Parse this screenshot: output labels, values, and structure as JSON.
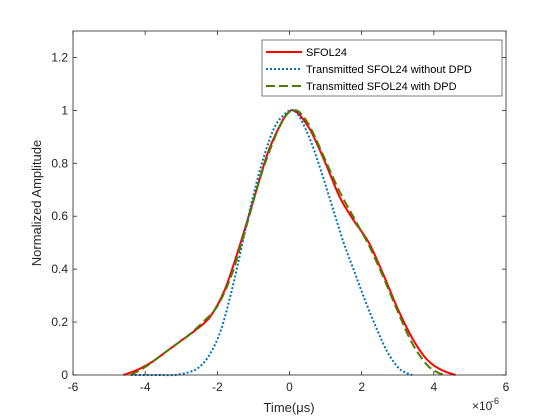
{
  "chart_data": {
    "type": "line",
    "xlabel": "Time(μs)",
    "ylabel": "Normalized Amplitude",
    "x_exponent_label": "×10",
    "x_exponent_power": "-6",
    "xlim": [
      -6,
      6
    ],
    "ylim": [
      0,
      1.3
    ],
    "x_ticks": [
      -6,
      -4,
      -2,
      0,
      2,
      4,
      6
    ],
    "x_tick_labels": [
      "-6",
      "-4",
      "-2",
      "0",
      "2",
      "4",
      "6"
    ],
    "y_ticks": [
      0,
      0.2,
      0.4,
      0.6,
      0.8,
      1,
      1.2
    ],
    "y_tick_labels": [
      "0",
      "0.2",
      "0.4",
      "0.6",
      "0.8",
      "1",
      "1.2"
    ],
    "grid": false,
    "legend_position": "top-right",
    "series": [
      {
        "name": "SFOL24",
        "color": "#ff0000",
        "style": "solid",
        "x": [
          -4.6,
          -4.2,
          -3.8,
          -3.4,
          -3.0,
          -2.6,
          -2.2,
          -1.8,
          -1.4,
          -1.0,
          -0.6,
          -0.2,
          0.0,
          0.1,
          0.3,
          0.6,
          1.0,
          1.4,
          1.8,
          2.2,
          2.6,
          3.0,
          3.4,
          3.8,
          4.2,
          4.6
        ],
        "y": [
          0.0,
          0.02,
          0.05,
          0.09,
          0.13,
          0.17,
          0.22,
          0.32,
          0.48,
          0.66,
          0.84,
          0.96,
          0.995,
          1.0,
          0.98,
          0.92,
          0.8,
          0.67,
          0.58,
          0.5,
          0.38,
          0.25,
          0.14,
          0.06,
          0.02,
          0.0
        ]
      },
      {
        "name": "Transmitted SFOL24 without DPD",
        "color": "#0072bd",
        "style": "dotted",
        "x": [
          -4.4,
          -4.0,
          -3.6,
          -3.2,
          -2.8,
          -2.5,
          -2.2,
          -1.9,
          -1.6,
          -1.3,
          -1.0,
          -0.7,
          -0.4,
          -0.1,
          0.1,
          0.3,
          0.6,
          0.9,
          1.2,
          1.5,
          1.8,
          2.1,
          2.4,
          2.7,
          3.0,
          3.2,
          3.4
        ],
        "y": [
          0.0,
          0.0,
          0.0,
          0.0,
          0.01,
          0.03,
          0.08,
          0.17,
          0.32,
          0.5,
          0.68,
          0.83,
          0.94,
          0.99,
          1.0,
          0.97,
          0.88,
          0.76,
          0.63,
          0.5,
          0.39,
          0.28,
          0.18,
          0.09,
          0.03,
          0.01,
          0.0
        ]
      },
      {
        "name": "Transmitted SFOL24 with DPD",
        "color": "#4d7d00",
        "style": "dashed",
        "x": [
          -4.4,
          -4.0,
          -3.6,
          -3.2,
          -2.8,
          -2.4,
          -2.0,
          -1.6,
          -1.2,
          -0.8,
          -0.4,
          -0.1,
          0.1,
          0.3,
          0.6,
          1.0,
          1.4,
          1.8,
          2.2,
          2.6,
          3.0,
          3.4,
          3.8,
          4.1,
          4.3
        ],
        "y": [
          0.0,
          0.03,
          0.07,
          0.11,
          0.15,
          0.2,
          0.26,
          0.38,
          0.56,
          0.75,
          0.9,
          0.98,
          1.0,
          0.99,
          0.93,
          0.81,
          0.69,
          0.59,
          0.49,
          0.37,
          0.24,
          0.12,
          0.04,
          0.01,
          0.0
        ]
      }
    ]
  }
}
